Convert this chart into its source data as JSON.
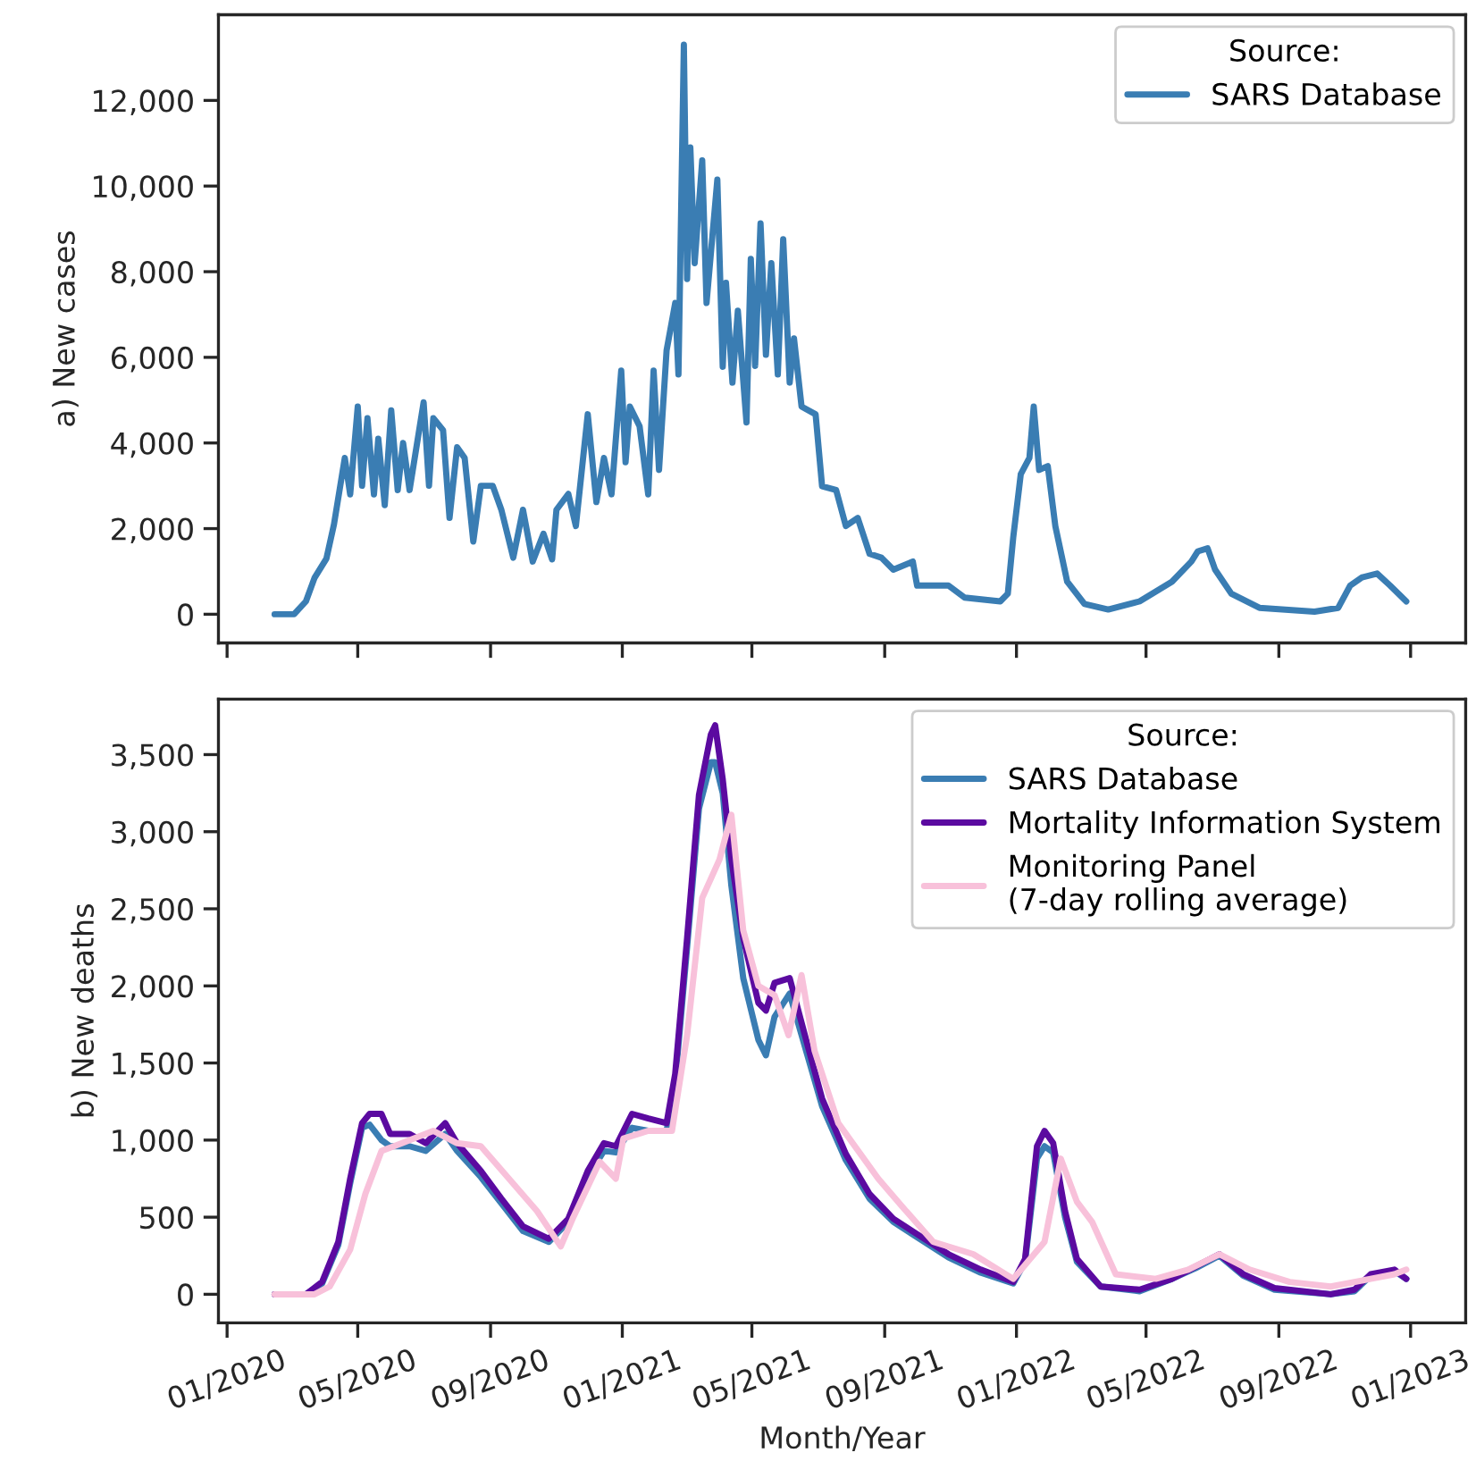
{
  "chart_data": [
    {
      "type": "line",
      "ylabel": "a) New cases",
      "legend": "top right",
      "legend_title": "Source:",
      "tick_labels": "y",
      "xlim": [
        "2019-12-24",
        "2023-02-21"
      ],
      "xticks": [
        {
          "value": "2020-01-01",
          "label": null
        },
        {
          "value": "2020-05-01",
          "label": null
        },
        {
          "value": "2020-09-01",
          "label": null
        },
        {
          "value": "2021-01-01",
          "label": null
        },
        {
          "value": "2021-05-01",
          "label": null
        },
        {
          "value": "2021-09-01",
          "label": null
        },
        {
          "value": "2022-01-01",
          "label": null
        },
        {
          "value": "2022-05-01",
          "label": null
        },
        {
          "value": "2022-09-01",
          "label": null
        },
        {
          "value": "2023-01-01",
          "label": null
        }
      ],
      "ylim": [
        -670,
        14000
      ],
      "yticks": [
        0,
        {
          "value": 2000,
          "label": "2,000"
        },
        {
          "value": 4000,
          "label": "4,000"
        },
        {
          "value": 6000,
          "label": "6,000"
        },
        {
          "value": 8000,
          "label": "8,000"
        },
        {
          "value": 10000,
          "label": "10,000"
        },
        {
          "value": 12000,
          "label": "12,000"
        }
      ],
      "series": [
        {
          "name": "SARS Database",
          "color": "#3a7db3",
          "x": [
            "2020-02-14",
            "2020-03-03",
            "2020-03-14",
            "2020-03-22",
            "2020-04-02",
            "2020-04-09",
            "2020-04-19",
            "2020-04-24",
            "2020-05-01",
            "2020-05-05",
            "2020-05-10",
            "2020-05-16",
            "2020-05-20",
            "2020-05-26",
            "2020-06-01",
            "2020-06-07",
            "2020-06-12",
            "2020-06-18",
            "2020-07-01",
            "2020-07-06",
            "2020-07-10",
            "2020-07-19",
            "2020-07-25",
            "2020-08-01",
            "2020-08-08",
            "2020-08-16",
            "2020-08-23",
            "2020-09-03",
            "2020-09-11",
            "2020-09-22",
            "2020-10-01",
            "2020-10-10",
            "2020-10-20",
            "2020-10-28",
            "2020-11-01",
            "2020-11-12",
            "2020-11-19",
            "2020-11-30",
            "2020-12-08",
            "2020-12-15",
            "2020-12-22",
            "2020-12-31",
            "2021-01-04",
            "2021-01-08",
            "2021-01-17",
            "2021-01-25",
            "2021-01-30",
            "2021-02-04",
            "2021-02-11",
            "2021-02-19",
            "2021-02-22",
            "2021-02-27",
            "2021-03-02",
            "2021-03-05",
            "2021-03-09",
            "2021-03-16",
            "2021-03-20",
            "2021-03-30",
            "2021-04-04",
            "2021-04-07",
            "2021-04-13",
            "2021-04-18",
            "2021-04-26",
            "2021-04-30",
            "2021-05-04",
            "2021-05-09",
            "2021-05-14",
            "2021-05-19",
            "2021-05-25",
            "2021-05-30",
            "2021-06-05",
            "2021-06-09",
            "2021-06-16",
            "2021-06-29",
            "2021-07-05",
            "2021-07-18",
            "2021-07-27",
            "2021-08-07",
            "2021-08-18",
            "2021-08-29",
            "2021-09-09",
            "2021-09-27",
            "2021-10-01",
            "2021-10-30",
            "2021-11-14",
            "2021-12-17",
            "2021-12-24",
            "2021-12-29",
            "2022-01-05",
            "2022-01-13",
            "2022-01-17",
            "2022-01-22",
            "2022-01-30",
            "2022-02-06",
            "2022-02-17",
            "2022-03-05",
            "2022-03-27",
            "2022-04-25",
            "2022-05-25",
            "2022-06-12",
            "2022-06-18",
            "2022-06-27",
            "2022-07-04",
            "2022-07-19",
            "2022-08-14",
            "2022-10-04",
            "2022-10-26",
            "2022-11-06",
            "2022-11-17",
            "2022-12-01",
            "2022-12-13",
            "2022-12-28"
          ],
          "values": [
            0,
            0,
            300,
            850,
            1300,
            2100,
            3650,
            2800,
            4850,
            3000,
            4580,
            2800,
            4100,
            2550,
            4760,
            2900,
            4000,
            2900,
            4950,
            3000,
            4580,
            4300,
            2250,
            3900,
            3650,
            1700,
            3000,
            3000,
            2440,
            1320,
            2440,
            1230,
            1880,
            1280,
            2440,
            2810,
            2060,
            4670,
            2620,
            3650,
            2800,
            5690,
            3550,
            4850,
            4390,
            2800,
            5690,
            3370,
            6160,
            7270,
            5600,
            13300,
            7830,
            10900,
            8200,
            10600,
            7270,
            10150,
            5780,
            7740,
            5410,
            7090,
            4480,
            8300,
            5800,
            9130,
            6060,
            8200,
            5600,
            8760,
            5410,
            6440,
            4850,
            4670,
            2990,
            2900,
            2060,
            2250,
            1410,
            1320,
            1040,
            1230,
            670,
            670,
            390,
            300,
            480,
            1790,
            3270,
            3650,
            4850,
            3370,
            3460,
            2060,
            760,
            240,
            110,
            300,
            760,
            1230,
            1470,
            1540,
            1040,
            480,
            150,
            60,
            150,
            670,
            860,
            950,
            670,
            300
          ]
        }
      ]
    },
    {
      "type": "line",
      "ylabel": "b) New deaths",
      "xlabel": "Month/Year",
      "legend": "top right",
      "legend_title": "Source:",
      "xlim": [
        "2019-12-24",
        "2023-02-21"
      ],
      "xticks": [
        {
          "value": "2020-01-01",
          "label": "01/2020"
        },
        {
          "value": "2020-05-01",
          "label": "05/2020"
        },
        {
          "value": "2020-09-01",
          "label": "09/2020"
        },
        {
          "value": "2021-01-01",
          "label": "01/2021"
        },
        {
          "value": "2021-05-01",
          "label": "05/2021"
        },
        {
          "value": "2021-09-01",
          "label": "09/2021"
        },
        {
          "value": "2022-01-01",
          "label": "01/2022"
        },
        {
          "value": "2022-05-01",
          "label": "05/2022"
        },
        {
          "value": "2022-09-01",
          "label": "09/2022"
        },
        {
          "value": "2023-01-01",
          "label": "01/2023"
        }
      ],
      "ylim": [
        -185,
        3860
      ],
      "yticks": [
        0,
        500,
        {
          "value": 1000,
          "label": "1,000"
        },
        {
          "value": 1500,
          "label": "1,500"
        },
        {
          "value": 2000,
          "label": "2,000"
        },
        {
          "value": 2500,
          "label": "2,500"
        },
        {
          "value": 3000,
          "label": "3,000"
        },
        {
          "value": 3500,
          "label": "3,500"
        }
      ],
      "series": [
        {
          "name": "SARS Database",
          "color": "#3a7db3",
          "x": [
            "2020-02-14",
            "2020-03-14",
            "2020-03-29",
            "2020-04-13",
            "2020-04-24",
            "2020-05-05",
            "2020-05-12",
            "2020-05-23",
            "2020-05-31",
            "2020-06-18",
            "2020-07-03",
            "2020-07-21",
            "2020-08-01",
            "2020-08-23",
            "2020-09-11",
            "2020-10-01",
            "2020-10-25",
            "2020-11-12",
            "2020-11-30",
            "2020-12-15",
            "2020-12-26",
            "2021-01-10",
            "2021-01-25",
            "2021-02-11",
            "2021-02-19",
            "2021-03-02",
            "2021-03-13",
            "2021-03-24",
            "2021-03-28",
            "2021-04-04",
            "2021-04-12",
            "2021-04-23",
            "2021-05-07",
            "2021-05-14",
            "2021-05-22",
            "2021-06-05",
            "2021-06-21",
            "2021-07-05",
            "2021-07-27",
            "2021-08-18",
            "2021-09-09",
            "2021-10-01",
            "2021-10-30",
            "2021-11-29",
            "2021-12-29",
            "2022-01-09",
            "2022-01-20",
            "2022-01-27",
            "2022-02-04",
            "2022-02-15",
            "2022-02-26",
            "2022-03-20",
            "2022-04-25",
            "2022-05-25",
            "2022-06-16",
            "2022-07-08",
            "2022-07-30",
            "2022-08-28",
            "2022-10-19",
            "2022-11-10",
            "2022-11-25",
            "2022-12-17",
            "2022-12-28"
          ],
          "values": [
            0,
            0,
            70,
            320,
            720,
            1080,
            1100,
            1000,
            960,
            960,
            930,
            1040,
            930,
            760,
            590,
            410,
            340,
            470,
            760,
            930,
            920,
            1080,
            1060,
            1060,
            1380,
            2250,
            3150,
            3450,
            3450,
            3250,
            2650,
            2050,
            1650,
            1550,
            1800,
            1950,
            1560,
            1220,
            870,
            620,
            470,
            370,
            240,
            140,
            70,
            210,
            880,
            960,
            920,
            500,
            210,
            50,
            20,
            100,
            170,
            250,
            120,
            30,
            0,
            20,
            120,
            150,
            100
          ]
        },
        {
          "name": "Mortality Information System",
          "color": "#5b0aa0",
          "x": [
            "2020-02-14",
            "2020-03-14",
            "2020-03-29",
            "2020-04-13",
            "2020-04-24",
            "2020-05-05",
            "2020-05-12",
            "2020-05-23",
            "2020-05-31",
            "2020-06-18",
            "2020-07-03",
            "2020-07-21",
            "2020-08-01",
            "2020-08-23",
            "2020-09-11",
            "2020-10-01",
            "2020-10-25",
            "2020-11-12",
            "2020-11-30",
            "2020-12-15",
            "2020-12-26",
            "2021-01-10",
            "2021-01-25",
            "2021-02-11",
            "2021-02-19",
            "2021-03-02",
            "2021-03-13",
            "2021-03-24",
            "2021-03-28",
            "2021-04-04",
            "2021-04-12",
            "2021-04-23",
            "2021-05-07",
            "2021-05-14",
            "2021-05-22",
            "2021-06-05",
            "2021-06-21",
            "2021-07-05",
            "2021-07-27",
            "2021-08-18",
            "2021-09-09",
            "2021-10-01",
            "2021-10-30",
            "2021-11-29",
            "2021-12-29",
            "2022-01-09",
            "2022-01-20",
            "2022-01-27",
            "2022-02-04",
            "2022-02-15",
            "2022-02-26",
            "2022-03-20",
            "2022-04-25",
            "2022-05-25",
            "2022-06-16",
            "2022-07-08",
            "2022-07-30",
            "2022-08-28",
            "2022-10-19",
            "2022-11-10",
            "2022-11-25",
            "2022-12-17",
            "2022-12-28"
          ],
          "values": [
            0,
            0,
            80,
            340,
            750,
            1110,
            1170,
            1170,
            1040,
            1040,
            980,
            1110,
            980,
            800,
            620,
            440,
            360,
            490,
            800,
            980,
            960,
            1170,
            1140,
            1110,
            1430,
            2310,
            3240,
            3630,
            3690,
            3340,
            2820,
            2310,
            1890,
            1840,
            2020,
            2050,
            1630,
            1270,
            910,
            650,
            490,
            390,
            260,
            160,
            80,
            230,
            960,
            1060,
            980,
            540,
            230,
            50,
            30,
            100,
            180,
            260,
            130,
            40,
            0,
            30,
            130,
            160,
            100
          ]
        },
        {
          "name": "Monitoring Panel\n(7-day rolling average)",
          "color": "#f8c1da",
          "x": [
            "2020-02-14",
            "2020-03-22",
            "2020-04-05",
            "2020-04-24",
            "2020-05-08",
            "2020-05-23",
            "2020-06-11",
            "2020-07-10",
            "2020-08-01",
            "2020-08-23",
            "2020-09-18",
            "2020-10-14",
            "2020-11-05",
            "2020-11-16",
            "2020-12-11",
            "2020-12-26",
            "2021-01-02",
            "2021-01-25",
            "2021-02-16",
            "2021-03-02",
            "2021-03-16",
            "2021-04-01",
            "2021-04-12",
            "2021-04-23",
            "2021-05-07",
            "2021-05-22",
            "2021-06-04",
            "2021-06-16",
            "2021-06-28",
            "2021-07-20",
            "2021-08-26",
            "2021-09-17",
            "2021-10-16",
            "2021-11-22",
            "2021-12-29",
            "2022-01-27",
            "2022-02-11",
            "2022-02-26",
            "2022-03-12",
            "2022-04-03",
            "2022-05-10",
            "2022-06-09",
            "2022-07-08",
            "2022-08-05",
            "2022-09-11",
            "2022-10-19",
            "2022-11-25",
            "2022-12-17",
            "2022-12-28"
          ],
          "values": [
            0,
            0,
            50,
            290,
            650,
            930,
            980,
            1060,
            980,
            960,
            750,
            540,
            310,
            490,
            860,
            750,
            1010,
            1060,
            1060,
            1680,
            2570,
            2820,
            3110,
            2360,
            2000,
            1940,
            1680,
            2070,
            1580,
            1110,
            750,
            570,
            340,
            260,
            100,
            340,
            880,
            600,
            470,
            130,
            100,
            160,
            260,
            160,
            80,
            50,
            100,
            130,
            160
          ]
        }
      ]
    }
  ]
}
